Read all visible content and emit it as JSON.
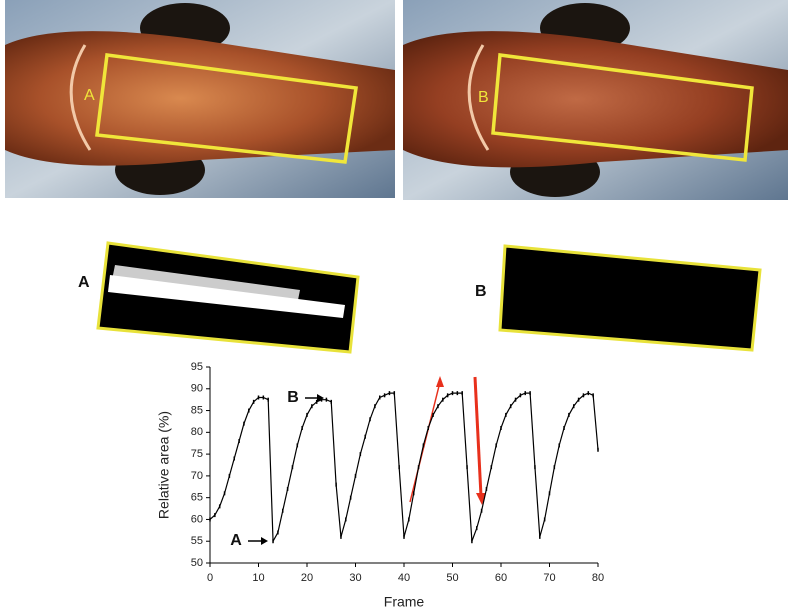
{
  "photos": {
    "labels": [
      "A",
      "B"
    ]
  },
  "masks": {
    "labels": [
      "A",
      "B"
    ]
  },
  "chart_data": {
    "type": "line",
    "xlabel": "Frame",
    "ylabel": "Relative area (%)",
    "x": [
      0,
      1,
      2,
      3,
      4,
      5,
      6,
      7,
      8,
      9,
      10,
      11,
      12,
      13,
      14,
      15,
      16,
      17,
      18,
      19,
      20,
      21,
      22,
      23,
      24,
      25,
      26,
      27,
      28,
      29,
      30,
      31,
      32,
      33,
      34,
      35,
      36,
      37,
      38,
      39,
      40,
      41,
      42,
      43,
      44,
      45,
      46,
      47,
      48,
      49,
      50,
      51,
      52,
      53,
      54,
      55,
      56,
      57,
      58,
      59,
      60,
      61,
      62,
      63,
      64,
      65,
      66,
      67,
      68,
      69,
      70,
      71,
      72,
      73,
      74,
      75,
      76,
      77,
      78,
      79,
      80
    ],
    "values": [
      60,
      61,
      63,
      66,
      70,
      74,
      78,
      82,
      85,
      87,
      88,
      88,
      87.5,
      55,
      57,
      62,
      67,
      72,
      77,
      81,
      84,
      86,
      87,
      87.5,
      87.5,
      87,
      68,
      56,
      60,
      65,
      70,
      75,
      79,
      83,
      86,
      88,
      88.5,
      89,
      89,
      72,
      56,
      60,
      66,
      72,
      77,
      81,
      84,
      86,
      87.5,
      88.5,
      89,
      89,
      89,
      72,
      55,
      58,
      62,
      67,
      72,
      77,
      81,
      84,
      86,
      87.5,
      88.5,
      89,
      89,
      72,
      56,
      60,
      66,
      72,
      77,
      81,
      84,
      86,
      87.5,
      88.5,
      89,
      88.5,
      76
    ],
    "color": "#000000",
    "xlim": [
      0,
      80
    ],
    "xticks": [
      0,
      10,
      20,
      30,
      40,
      50,
      60,
      70,
      80
    ],
    "ylim": [
      50,
      95
    ],
    "yticks": [
      50,
      55,
      60,
      65,
      70,
      75,
      80,
      85,
      90,
      95
    ],
    "annotations": [
      "A",
      "B"
    ]
  }
}
